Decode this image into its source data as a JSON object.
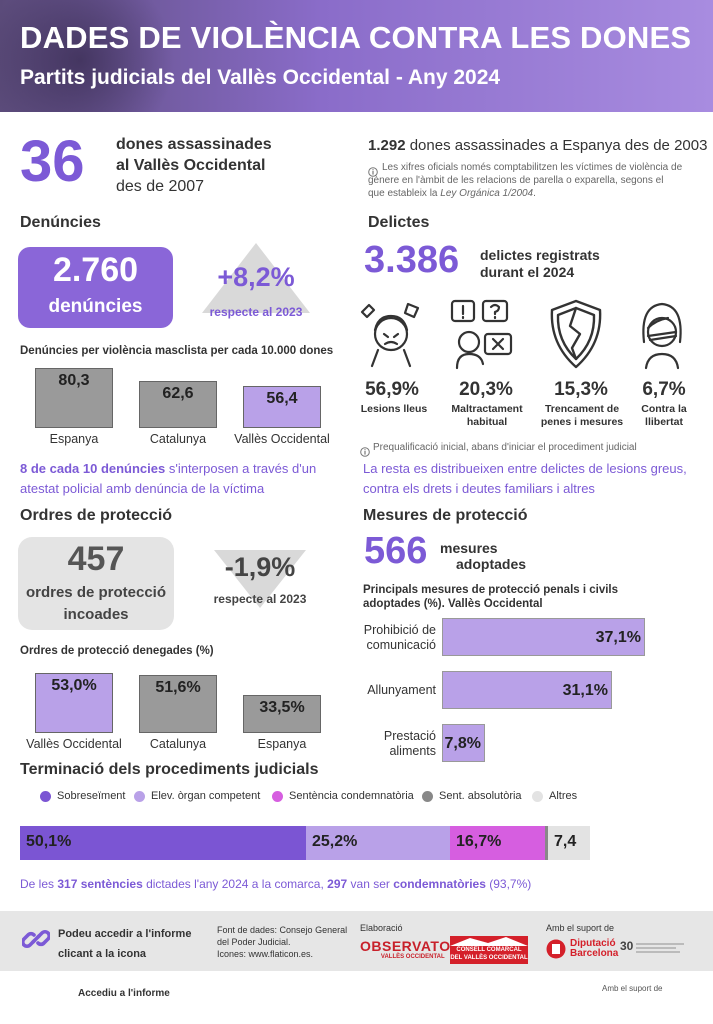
{
  "header": {
    "title": "DADES DE VIOLÈNCIA CONTRA LES DONES",
    "subtitle": "Partits judicials del Vallès Occidental - Any 2024"
  },
  "assassinades": {
    "number": "36",
    "line1": "dones assassinades",
    "line2": "al Vallès Occidental",
    "line3": "des de 2007",
    "spain_number": "1.292",
    "spain_text": "dones assassinades a Espanya des de 2003",
    "note_icon": "info-icon",
    "note_1": "Les xifres oficials només comptabilitzen les víctimes de violència de",
    "note_2": "gènere en l'àmbit de les relacions de parella o exparella, segons el",
    "note_3a": "que estableix la ",
    "note_3b": "Ley Orgánica 1/2004",
    "note_3c": "."
  },
  "denuncies": {
    "heading": "Denúncies",
    "number": "2.760",
    "unit": "denúncies",
    "change": "+8,2%",
    "change_caption": "respecte al 2023",
    "chart_title": "Denúncies per violència masclista per cada 10.000 dones",
    "note_bold": "8 de cada 10 denúncies",
    "note_rest": " s'interposen a través d'un",
    "note_line2": "atestat policial amb denúncia de la víctima"
  },
  "delictes": {
    "heading": "Delictes",
    "number": "3.386",
    "caption_1": "delictes registrats",
    "caption_2": "durant el 2024",
    "items": [
      {
        "pct": "56,9%",
        "label": "Lesions lleus",
        "icon": "injured-person-icon"
      },
      {
        "pct": "20,3%",
        "label": "Maltractament habitual",
        "icon": "abuse-icon"
      },
      {
        "pct": "15,3%",
        "label": "Trencament de penes i mesures",
        "icon": "broken-shield-icon"
      },
      {
        "pct": "6,7%",
        "label": "Contra la llibertat",
        "icon": "gagged-woman-icon"
      }
    ],
    "note": "Prequalificació inicial, abans d'iniciar el procediment judicial",
    "rest_1": "La resta es distribueixen entre delictes de lesions greus,",
    "rest_2": "contra els drets i deutes familiars i altres"
  },
  "ordres": {
    "heading": "Ordres de protecció",
    "number": "457",
    "caption_1": "ordres de protecció",
    "caption_2": "incoades",
    "change": "-1,9%",
    "change_caption": "respecte al 2023",
    "chart_title": "Ordres de protecció denegades (%)"
  },
  "mesures": {
    "heading": "Mesures de protecció",
    "number": "566",
    "caption_1": "mesures",
    "caption_2": "adoptades",
    "chart_title_1": "Principals mesures de protecció penals i civils",
    "chart_title_2": "adoptades (%). Vallès Occidental"
  },
  "terminacio": {
    "heading": "Terminació dels procediments judicials",
    "note_a": "De les ",
    "note_b": "317 sentències",
    "note_c": " dictades l'any 2024 a la comarca, ",
    "note_d": "297",
    "note_e": " van ser ",
    "note_f": "condemnatòries",
    "note_g": " (93,7%)"
  },
  "footer": {
    "link_icon": "link-icon",
    "access_1": "Podeu accedir a l'informe",
    "access_2": "clicant a la icona",
    "source_1": "Font de dades: Consejo General",
    "source_2": "del Poder Judicial.",
    "source_3": "Icones: www.flaticon.es.",
    "elaboracio": "Elaboració",
    "observatori": "OBSERVATORI",
    "observatori_sub": "VALLÈS OCCIDENTAL",
    "consell_1": "CONSELL COMARCAL",
    "consell_2": "DEL VALLÈS OCCIDENTAL",
    "suport": "Amb el suport de",
    "diputacio_1": "Diputació",
    "diputacio_2": "Barcelona",
    "anys": "30",
    "bottom_link": "Accediu a l'informe",
    "bottom_right": "Amb el suport de"
  },
  "colors": {
    "accent": "#7c5ad6",
    "light_purple": "#b9a1e8",
    "gray_bar": "#9a9a9a",
    "dark_purple": "#7b55d3",
    "magenta": "#d65ee0",
    "red": "#d4202a"
  },
  "chart_data": [
    {
      "type": "bar",
      "title": "Denúncies per violència masclista per cada 10.000 dones",
      "categories": [
        "Espanya",
        "Catalunya",
        "Vallès Occidental"
      ],
      "values": [
        80.3,
        62.6,
        56.4
      ],
      "value_labels": [
        "80,3",
        "62,6",
        "56,4"
      ],
      "colors": [
        "#9a9a9a",
        "#9a9a9a",
        "#b9a1e8"
      ]
    },
    {
      "type": "bar",
      "title": "Ordres de protecció denegades (%)",
      "categories": [
        "Vallès Occidental",
        "Catalunya",
        "Espanya"
      ],
      "values": [
        53.0,
        51.6,
        33.5
      ],
      "value_labels": [
        "53,0%",
        "51,6%",
        "33,5%"
      ],
      "colors": [
        "#b9a1e8",
        "#9a9a9a",
        "#9a9a9a"
      ]
    },
    {
      "type": "bar",
      "orientation": "horizontal",
      "title": "Principals mesures de protecció penals i civils adoptades (%). Vallès Occidental",
      "categories": [
        "Prohibició de comunicació",
        "Allunyament",
        "Prestació aliments"
      ],
      "values": [
        37.1,
        31.1,
        7.8
      ],
      "value_labels": [
        "37,1%",
        "31,1%",
        "7,8%"
      ]
    },
    {
      "type": "bar",
      "orientation": "horizontal-stacked",
      "title": "Terminació dels procediments judicials",
      "series": [
        {
          "name": "Sobreseïment",
          "value": 50.1,
          "label": "50,1%",
          "color": "#7b55d3"
        },
        {
          "name": "Elev. òrgan competent",
          "value": 25.2,
          "label": "25,2%",
          "color": "#b9a1e8"
        },
        {
          "name": "Sentència condemnatòria",
          "value": 16.7,
          "label": "16,7%",
          "color": "#d65ee0"
        },
        {
          "name": "Sent. absolutòria",
          "value": 0.6,
          "label": "",
          "color": "#888888"
        },
        {
          "name": "Altres",
          "value": 7.4,
          "label": "7,4",
          "color": "#e3e3e3"
        }
      ]
    }
  ]
}
